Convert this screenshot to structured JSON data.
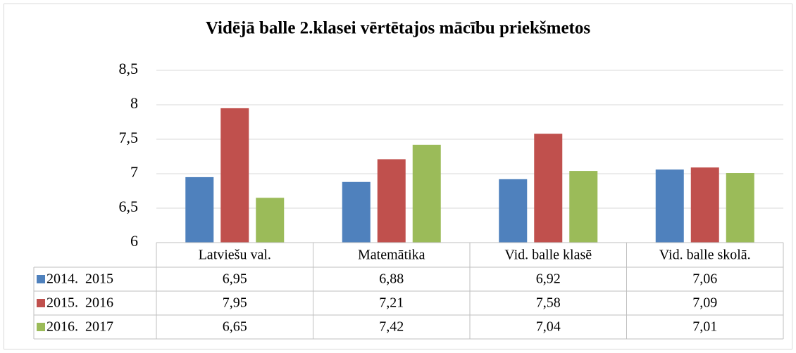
{
  "chart_data": {
    "type": "bar",
    "title": "Vidējā balle 2.klasei vērtētajos mācību priekšmetos",
    "categories": [
      "Latviešu val.",
      "Matemātika",
      "Vid. balle klasē",
      "Vid. balle skolā."
    ],
    "series": [
      {
        "name": "2014.  2015",
        "color": "#4f81bd",
        "values": [
          6.95,
          6.88,
          6.92,
          7.06
        ],
        "value_labels": [
          "6,95",
          "6,88",
          "6,92",
          "7,06"
        ]
      },
      {
        "name": "2015.  2016",
        "color": "#c0504d",
        "values": [
          7.95,
          7.21,
          7.58,
          7.09
        ],
        "value_labels": [
          "7,95",
          "7,21",
          "7,58",
          "7,09"
        ]
      },
      {
        "name": "2016.  2017",
        "color": "#9bbb59",
        "values": [
          6.65,
          7.42,
          7.04,
          7.01
        ],
        "value_labels": [
          "6,65",
          "7,42",
          "7,04",
          "7,01"
        ]
      }
    ],
    "ylim": [
      6,
      8.5
    ],
    "yticks": [
      6,
      {
        "value": 6.5,
        "label": "6,5"
      },
      7,
      {
        "value": 7.5,
        "label": "7,5"
      },
      8,
      {
        "value": 8.5,
        "label": "8,5"
      }
    ],
    "grid": true
  }
}
